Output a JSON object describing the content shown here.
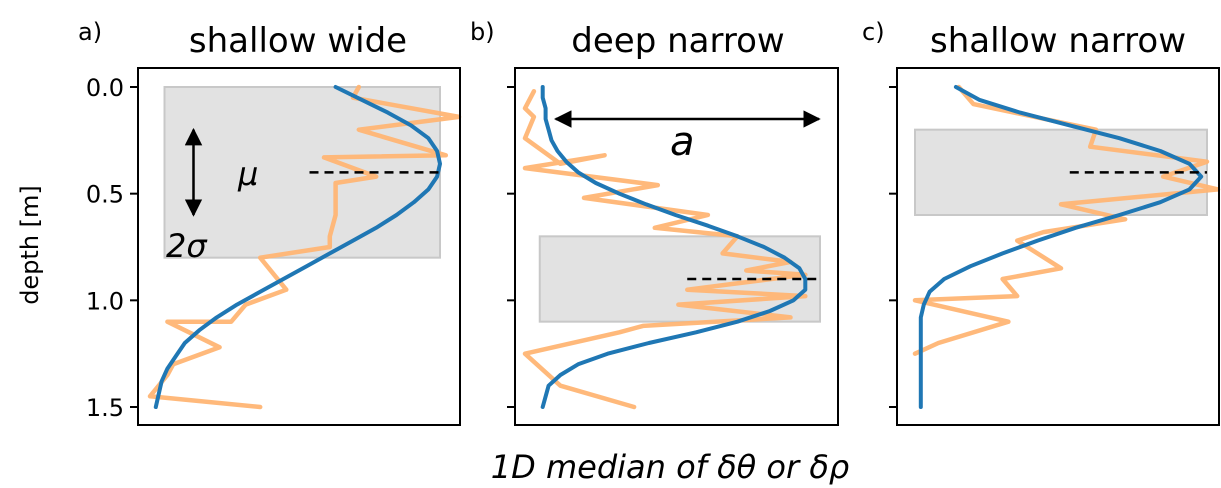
{
  "figure": {
    "xlabel": "1D median of δθ or δρ",
    "ylabel": "depth [m]"
  },
  "chart_data": [
    {
      "type": "line",
      "panel_label": "a)",
      "title": "shallow wide",
      "ylabel": "depth [m]",
      "ylim": [
        1.5,
        0.0
      ],
      "yticks": [
        0.0,
        0.5,
        1.0,
        1.5
      ],
      "ytick_labels": [
        "0.0",
        "0.5",
        "1.0",
        "1.5"
      ],
      "show_ytick_labels": true,
      "xlim": [
        0,
        1
      ],
      "xticks": [],
      "shaded_region": {
        "depth_top": 0.0,
        "depth_bottom": 0.8,
        "x_start": 0.05,
        "x_end": 1.0,
        "color": "#e2e2e2"
      },
      "mean_line": {
        "depth": 0.4,
        "x_start": 0.55,
        "x_end": 1.0
      },
      "annotations": {
        "mu": "μ",
        "two_sigma": "2σ",
        "sigma_arrow": {
          "x": 0.15,
          "depth_top": 0.2,
          "depth_bottom": 0.6
        }
      },
      "series": [
        {
          "color": "#1f77b4",
          "x": [
            0.64,
            0.73,
            0.82,
            0.9,
            0.96,
            0.99,
            1.0,
            0.99,
            0.96,
            0.91,
            0.85,
            0.78,
            0.7,
            0.62,
            0.54,
            0.46,
            0.38,
            0.3,
            0.23,
            0.17,
            0.12,
            0.09,
            0.06,
            0.04,
            0.03,
            0.02
          ],
          "depth": [
            0.0,
            0.06,
            0.12,
            0.18,
            0.24,
            0.3,
            0.36,
            0.42,
            0.48,
            0.54,
            0.6,
            0.66,
            0.72,
            0.78,
            0.84,
            0.9,
            0.96,
            1.02,
            1.08,
            1.14,
            1.2,
            1.26,
            1.32,
            1.38,
            1.44,
            1.5
          ]
        },
        {
          "color": "#ffb574",
          "x": [
            0.72,
            0.7,
            1.12,
            0.72,
            1.02,
            0.6,
            0.78,
            0.64,
            0.64,
            0.62,
            0.62,
            0.38,
            0.47,
            0.33,
            0.28,
            0.06,
            0.24,
            0.08,
            0.06,
            0.0,
            0.38
          ],
          "depth": [
            0.0,
            0.05,
            0.14,
            0.2,
            0.32,
            0.33,
            0.42,
            0.45,
            0.6,
            0.7,
            0.75,
            0.8,
            0.95,
            1.02,
            1.1,
            1.1,
            1.22,
            1.3,
            1.35,
            1.45,
            1.5
          ]
        }
      ]
    },
    {
      "type": "line",
      "panel_label": "b)",
      "title": "deep narrow",
      "ylabel": "",
      "ylim": [
        1.5,
        0.0
      ],
      "yticks": [
        0.0,
        0.5,
        1.0,
        1.5
      ],
      "ytick_labels": [],
      "show_ytick_labels": false,
      "xlim": [
        0,
        1
      ],
      "xticks": [],
      "shaded_region": {
        "depth_top": 0.7,
        "depth_bottom": 1.1,
        "x_start": 0.05,
        "x_end": 1.0,
        "color": "#e2e2e2"
      },
      "mean_line": {
        "depth": 0.9,
        "x_start": 0.55,
        "x_end": 1.0
      },
      "annotations": {
        "a": "a",
        "amplitude_arrow": {
          "depth": 0.15,
          "x_start": 0.05,
          "x_end": 1.0
        }
      },
      "series": [
        {
          "color": "#1f77b4",
          "x": [
            0.06,
            0.06,
            0.07,
            0.07,
            0.08,
            0.09,
            0.11,
            0.14,
            0.18,
            0.24,
            0.32,
            0.41,
            0.51,
            0.62,
            0.72,
            0.81,
            0.88,
            0.93,
            0.95,
            0.95,
            0.91,
            0.83,
            0.72,
            0.58,
            0.42,
            0.28,
            0.18,
            0.12,
            0.08,
            0.06
          ],
          "depth": [
            0.0,
            0.05,
            0.1,
            0.15,
            0.2,
            0.25,
            0.3,
            0.35,
            0.4,
            0.45,
            0.5,
            0.55,
            0.6,
            0.65,
            0.7,
            0.75,
            0.8,
            0.85,
            0.9,
            0.95,
            1.0,
            1.05,
            1.1,
            1.15,
            1.2,
            1.25,
            1.3,
            1.35,
            1.4,
            1.5
          ]
        },
        {
          "color": "#ffb574",
          "x": [
            0.03,
            0.0,
            0.03,
            0.0,
            0.12,
            0.27,
            0.0,
            0.45,
            0.2,
            0.62,
            0.44,
            0.72,
            0.67,
            0.9,
            0.75,
            0.95,
            0.55,
            0.95,
            0.52,
            0.9,
            0.4,
            0.32,
            0.0,
            0.12,
            0.37
          ],
          "depth": [
            0.02,
            0.1,
            0.14,
            0.24,
            0.36,
            0.32,
            0.38,
            0.46,
            0.52,
            0.6,
            0.66,
            0.7,
            0.78,
            0.82,
            0.86,
            0.88,
            0.95,
            0.98,
            1.02,
            1.08,
            1.12,
            1.15,
            1.25,
            1.4,
            1.5
          ]
        }
      ]
    },
    {
      "type": "line",
      "panel_label": "c)",
      "title": "shallow narrow",
      "ylabel": "",
      "ylim": [
        1.5,
        0.0
      ],
      "yticks": [
        0.0,
        0.5,
        1.0,
        1.5
      ],
      "ytick_labels": [],
      "show_ytick_labels": false,
      "xlim": [
        0,
        1
      ],
      "xticks": [],
      "shaded_region": {
        "depth_top": 0.2,
        "depth_bottom": 0.6,
        "x_start": 0.0,
        "x_end": 1.0,
        "color": "#e2e2e2"
      },
      "mean_line": {
        "depth": 0.4,
        "x_start": 0.53,
        "x_end": 1.0
      },
      "annotations": {},
      "series": [
        {
          "color": "#1f77b4",
          "x": [
            0.14,
            0.22,
            0.36,
            0.53,
            0.7,
            0.84,
            0.94,
            0.98,
            0.94,
            0.84,
            0.7,
            0.55,
            0.42,
            0.3,
            0.19,
            0.1,
            0.05,
            0.03,
            0.02,
            0.02,
            0.02,
            0.02,
            0.02,
            0.02,
            0.02,
            0.02
          ],
          "depth": [
            0.0,
            0.06,
            0.12,
            0.18,
            0.24,
            0.3,
            0.36,
            0.42,
            0.48,
            0.54,
            0.6,
            0.66,
            0.72,
            0.78,
            0.84,
            0.9,
            0.96,
            1.02,
            1.08,
            1.14,
            1.2,
            1.26,
            1.32,
            1.38,
            1.44,
            1.5
          ]
        },
        {
          "color": "#ffb574",
          "x": [
            0.15,
            0.2,
            0.62,
            0.6,
            1.0,
            0.85,
            1.1,
            0.5,
            0.72,
            0.44,
            0.35,
            0.5,
            0.3,
            0.35,
            0.0,
            0.32,
            0.08,
            0.0
          ],
          "depth": [
            0.0,
            0.08,
            0.2,
            0.28,
            0.35,
            0.42,
            0.48,
            0.55,
            0.62,
            0.68,
            0.72,
            0.85,
            0.9,
            0.98,
            1.0,
            1.1,
            1.2,
            1.25
          ]
        }
      ]
    }
  ]
}
